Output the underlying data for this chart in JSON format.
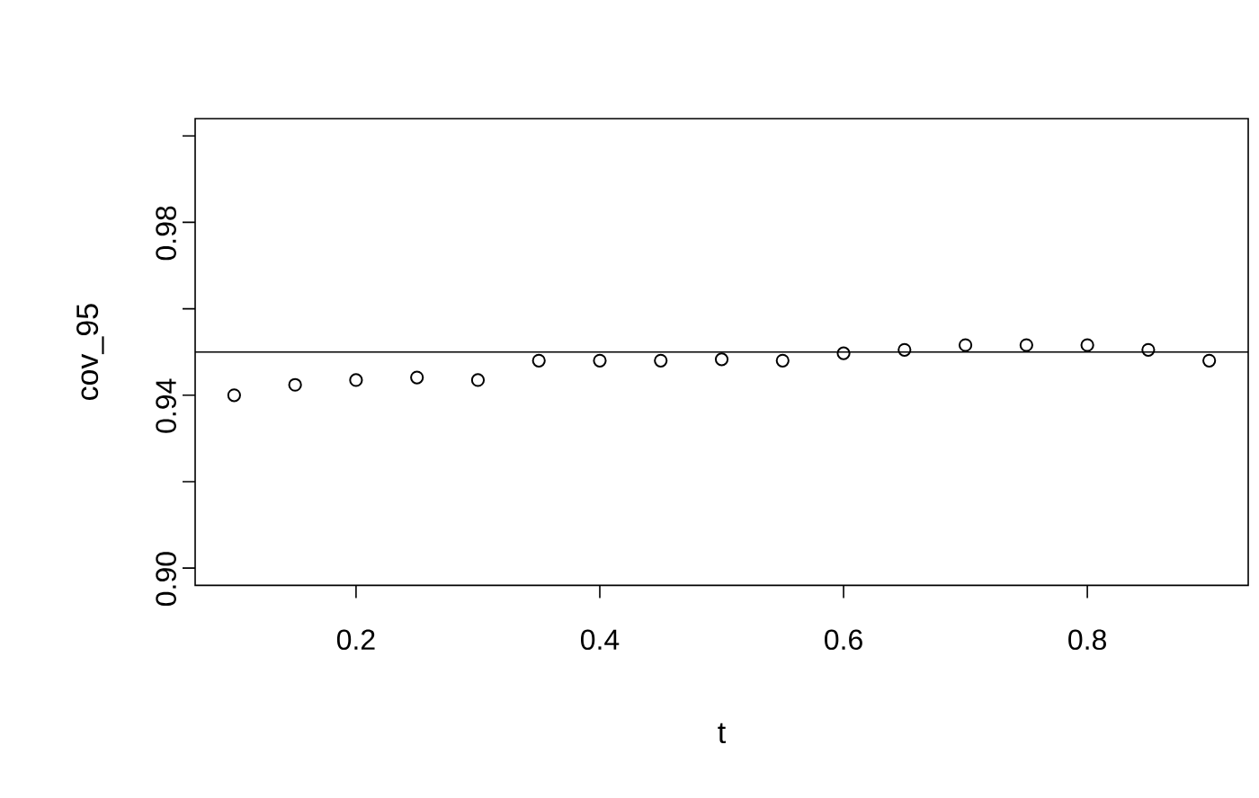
{
  "chart_data": {
    "type": "scatter",
    "xlabel": "t",
    "ylabel": "cov_95",
    "x": [
      0.1,
      0.15,
      0.2,
      0.25,
      0.3,
      0.35,
      0.4,
      0.45,
      0.5,
      0.55,
      0.6,
      0.65,
      0.7,
      0.75,
      0.8,
      0.85,
      0.9
    ],
    "values": [
      0.94,
      0.9424,
      0.9435,
      0.9441,
      0.9435,
      0.948,
      0.948,
      0.948,
      0.9483,
      0.948,
      0.9497,
      0.9505,
      0.9516,
      0.9516,
      0.9516,
      0.9505,
      0.948
    ],
    "color": "#000000",
    "marker": "circle",
    "xlim": [
      0.068,
      0.932
    ],
    "ylim": [
      0.896,
      1.004
    ],
    "xticks": [
      0.2,
      0.4,
      0.6,
      0.8
    ],
    "yticks": [
      {
        "value": 0.9,
        "label": "0.90"
      },
      {
        "value": 0.92,
        "label": null
      },
      {
        "value": 0.94,
        "label": "0.94"
      },
      {
        "value": 0.96,
        "label": null
      },
      {
        "value": 0.98,
        "label": "0.98"
      },
      {
        "value": 1.0,
        "label": null
      }
    ],
    "ref_lines": [
      {
        "axis": "y",
        "value": 0.95,
        "color": "#000000",
        "line_style": "solid"
      }
    ],
    "grid": false
  }
}
